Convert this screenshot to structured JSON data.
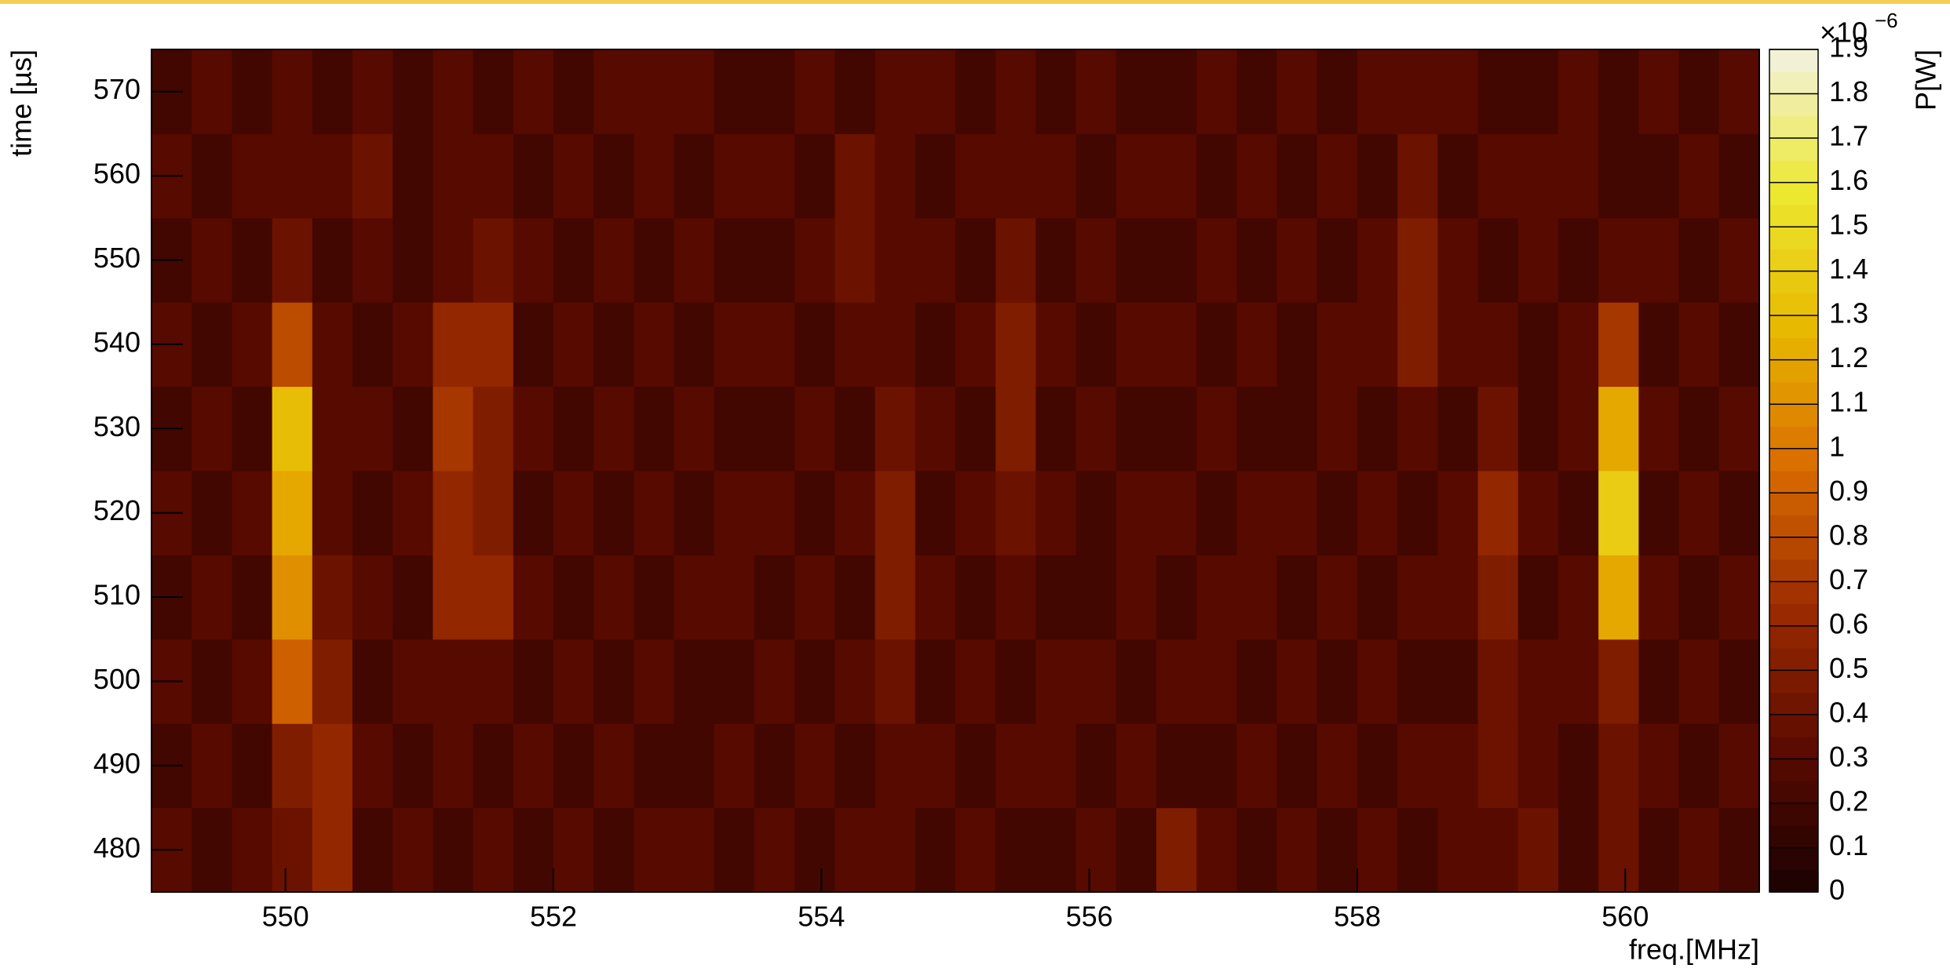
{
  "chart_data": {
    "type": "heatmap",
    "x_label": "freq.[MHz]",
    "y_label": "time [µs]",
    "z_label": "P[W]",
    "z_multiplier": "×10",
    "z_exponent": "−6",
    "xlim": [
      549,
      561
    ],
    "xticks": [
      550,
      552,
      554,
      556,
      558,
      560
    ],
    "ylim": [
      475,
      575
    ],
    "yticks": [
      480,
      490,
      500,
      510,
      520,
      530,
      540,
      550,
      560,
      570
    ],
    "zlim": [
      0,
      1.9
    ],
    "zticks": [
      0,
      0.1,
      0.2,
      0.3,
      0.4,
      0.5,
      0.6,
      0.7,
      0.8,
      0.9,
      1,
      1.1,
      1.2,
      1.3,
      1.4,
      1.5,
      1.6,
      1.7,
      1.8,
      1.9
    ],
    "colormap": [
      "#1a0202",
      "#5a0a00",
      "#9a2a00",
      "#d86a00",
      "#e8b800",
      "#ece830",
      "#f2f2e4"
    ],
    "x": [
      549.15,
      549.45,
      549.75,
      550.05,
      550.35,
      550.65,
      550.95,
      551.25,
      551.55,
      551.85,
      552.15,
      552.45,
      552.75,
      553.05,
      553.35,
      553.65,
      553.95,
      554.25,
      554.55,
      554.85,
      555.15,
      555.45,
      555.75,
      556.05,
      556.35,
      556.65,
      556.95,
      557.25,
      557.55,
      557.85,
      558.15,
      558.45,
      558.75,
      559.05,
      559.35,
      559.65,
      559.95,
      560.25,
      560.55,
      560.85
    ],
    "y": [
      480,
      490,
      500,
      510,
      520,
      530,
      540,
      550,
      560,
      570
    ],
    "values": [
      [
        0.3,
        0.2,
        0.3,
        0.4,
        0.6,
        0.2,
        0.3,
        0.2,
        0.3,
        0.2,
        0.3,
        0.2,
        0.3,
        0.3,
        0.2,
        0.3,
        0.2,
        0.3,
        0.3,
        0.2,
        0.3,
        0.2,
        0.2,
        0.3,
        0.2,
        0.5,
        0.3,
        0.2,
        0.3,
        0.2,
        0.3,
        0.2,
        0.3,
        0.3,
        0.4,
        0.2,
        0.4,
        0.2,
        0.3,
        0.2
      ],
      [
        0.2,
        0.3,
        0.2,
        0.5,
        0.6,
        0.3,
        0.2,
        0.3,
        0.2,
        0.3,
        0.2,
        0.3,
        0.2,
        0.2,
        0.3,
        0.2,
        0.3,
        0.2,
        0.3,
        0.3,
        0.2,
        0.3,
        0.3,
        0.2,
        0.3,
        0.2,
        0.2,
        0.3,
        0.2,
        0.3,
        0.2,
        0.3,
        0.3,
        0.4,
        0.3,
        0.2,
        0.4,
        0.3,
        0.2,
        0.3
      ],
      [
        0.3,
        0.2,
        0.3,
        0.9,
        0.5,
        0.2,
        0.3,
        0.3,
        0.3,
        0.2,
        0.3,
        0.2,
        0.3,
        0.2,
        0.2,
        0.3,
        0.2,
        0.3,
        0.4,
        0.2,
        0.3,
        0.2,
        0.3,
        0.3,
        0.2,
        0.3,
        0.3,
        0.2,
        0.3,
        0.2,
        0.3,
        0.2,
        0.2,
        0.4,
        0.3,
        0.3,
        0.5,
        0.2,
        0.3,
        0.2
      ],
      [
        0.2,
        0.3,
        0.2,
        1.1,
        0.4,
        0.3,
        0.2,
        0.6,
        0.6,
        0.3,
        0.2,
        0.3,
        0.2,
        0.3,
        0.3,
        0.2,
        0.3,
        0.2,
        0.5,
        0.3,
        0.2,
        0.3,
        0.2,
        0.2,
        0.3,
        0.2,
        0.3,
        0.3,
        0.2,
        0.3,
        0.2,
        0.3,
        0.3,
        0.5,
        0.2,
        0.3,
        1.2,
        0.3,
        0.2,
        0.3
      ],
      [
        0.3,
        0.2,
        0.3,
        1.2,
        0.3,
        0.2,
        0.3,
        0.6,
        0.5,
        0.2,
        0.3,
        0.2,
        0.3,
        0.2,
        0.3,
        0.3,
        0.2,
        0.3,
        0.5,
        0.2,
        0.3,
        0.4,
        0.3,
        0.2,
        0.3,
        0.3,
        0.2,
        0.3,
        0.3,
        0.2,
        0.3,
        0.2,
        0.3,
        0.6,
        0.3,
        0.2,
        1.4,
        0.2,
        0.3,
        0.2
      ],
      [
        0.2,
        0.3,
        0.2,
        1.3,
        0.3,
        0.3,
        0.2,
        0.7,
        0.5,
        0.3,
        0.2,
        0.3,
        0.2,
        0.3,
        0.2,
        0.2,
        0.3,
        0.2,
        0.4,
        0.3,
        0.2,
        0.5,
        0.2,
        0.3,
        0.2,
        0.2,
        0.3,
        0.2,
        0.2,
        0.3,
        0.2,
        0.3,
        0.2,
        0.4,
        0.2,
        0.3,
        1.2,
        0.3,
        0.2,
        0.3
      ],
      [
        0.3,
        0.2,
        0.3,
        0.8,
        0.3,
        0.2,
        0.3,
        0.6,
        0.6,
        0.2,
        0.3,
        0.2,
        0.3,
        0.2,
        0.3,
        0.3,
        0.2,
        0.3,
        0.3,
        0.2,
        0.3,
        0.5,
        0.3,
        0.2,
        0.3,
        0.3,
        0.2,
        0.3,
        0.2,
        0.3,
        0.3,
        0.5,
        0.3,
        0.3,
        0.2,
        0.3,
        0.7,
        0.2,
        0.3,
        0.2
      ],
      [
        0.2,
        0.3,
        0.2,
        0.4,
        0.2,
        0.3,
        0.2,
        0.3,
        0.4,
        0.3,
        0.2,
        0.3,
        0.2,
        0.3,
        0.2,
        0.2,
        0.3,
        0.4,
        0.3,
        0.3,
        0.2,
        0.4,
        0.2,
        0.3,
        0.2,
        0.2,
        0.3,
        0.2,
        0.3,
        0.2,
        0.3,
        0.5,
        0.3,
        0.2,
        0.3,
        0.2,
        0.3,
        0.3,
        0.2,
        0.3
      ],
      [
        0.3,
        0.2,
        0.3,
        0.3,
        0.3,
        0.4,
        0.2,
        0.3,
        0.3,
        0.2,
        0.3,
        0.2,
        0.3,
        0.2,
        0.3,
        0.3,
        0.2,
        0.4,
        0.3,
        0.2,
        0.3,
        0.3,
        0.3,
        0.2,
        0.3,
        0.3,
        0.2,
        0.3,
        0.2,
        0.3,
        0.2,
        0.4,
        0.2,
        0.3,
        0.3,
        0.3,
        0.2,
        0.2,
        0.3,
        0.2
      ],
      [
        0.2,
        0.3,
        0.2,
        0.3,
        0.2,
        0.3,
        0.2,
        0.3,
        0.2,
        0.3,
        0.2,
        0.3,
        0.3,
        0.3,
        0.2,
        0.2,
        0.3,
        0.2,
        0.3,
        0.3,
        0.2,
        0.3,
        0.2,
        0.3,
        0.2,
        0.2,
        0.3,
        0.2,
        0.3,
        0.2,
        0.3,
        0.3,
        0.3,
        0.2,
        0.2,
        0.3,
        0.2,
        0.3,
        0.2,
        0.3
      ]
    ]
  }
}
